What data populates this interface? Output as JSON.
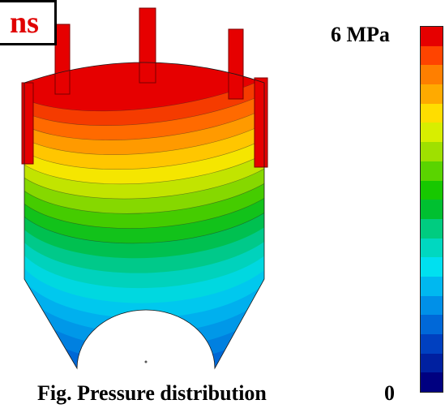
{
  "figure": {
    "tag": "ns",
    "caption": "Fig. Pressure distribution",
    "legend": {
      "max_label": "6 MPa",
      "min_label": "0",
      "colors": [
        "#e60000",
        "#ff4400",
        "#ff7f00",
        "#ffaa00",
        "#ffdd00",
        "#d8ee00",
        "#9fe000",
        "#5ad400",
        "#17c800",
        "#00c030",
        "#00cc80",
        "#00d8c0",
        "#00e0f0",
        "#00b8f0",
        "#0090e8",
        "#0068d8",
        "#0040c0",
        "#0020a0",
        "#000080"
      ]
    },
    "bands": [
      {
        "color": "#e60000"
      },
      {
        "color": "#f53b00"
      },
      {
        "color": "#ff6a00"
      },
      {
        "color": "#ff9a00"
      },
      {
        "color": "#ffc600"
      },
      {
        "color": "#f5e600"
      },
      {
        "color": "#c2e400"
      },
      {
        "color": "#86d800"
      },
      {
        "color": "#45cc00"
      },
      {
        "color": "#12c21a"
      },
      {
        "color": "#00c050"
      },
      {
        "color": "#00c98a"
      },
      {
        "color": "#00d2bc"
      },
      {
        "color": "#00d8e0"
      },
      {
        "color": "#00c8ee"
      },
      {
        "color": "#00b0ee"
      },
      {
        "color": "#0098e8"
      },
      {
        "color": "#0080e0"
      },
      {
        "color": "#0068d6"
      },
      {
        "color": "#0050c8"
      },
      {
        "color": "#0038b8"
      },
      {
        "color": "#0024a4"
      }
    ]
  }
}
